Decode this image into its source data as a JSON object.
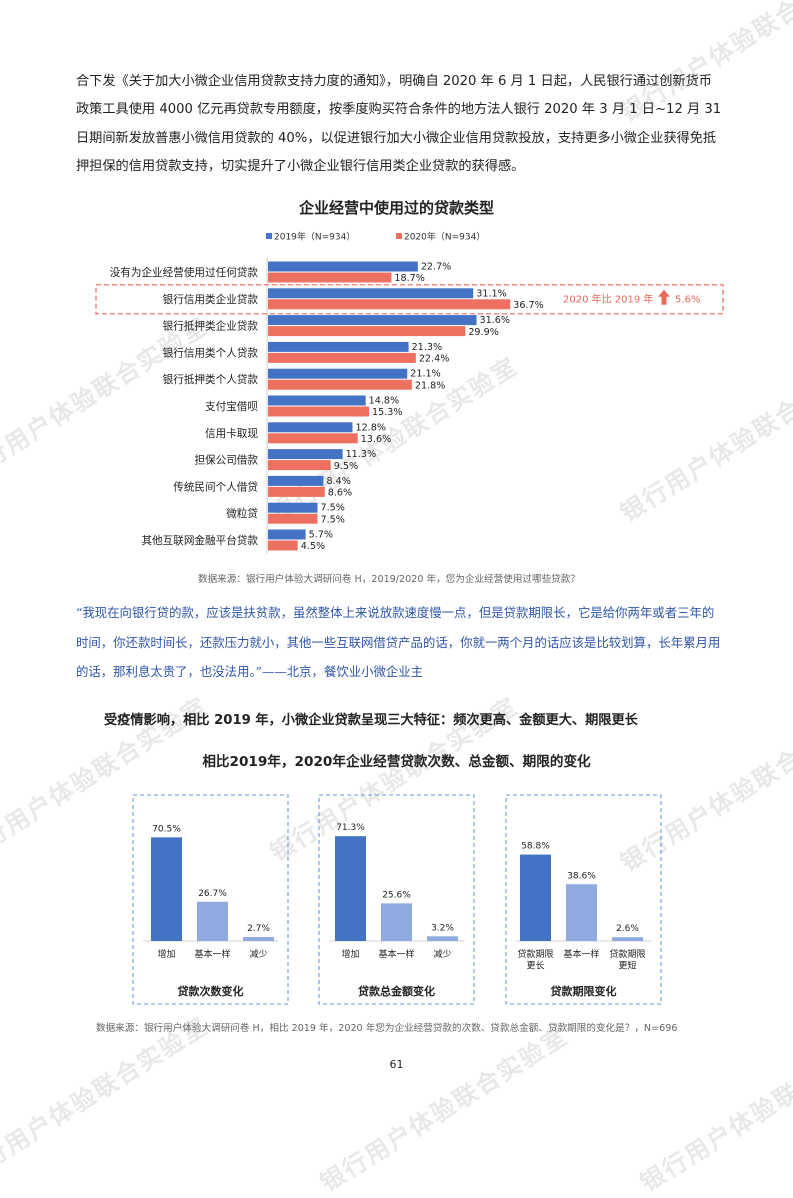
{
  "intro_paragraph": "合下发《关于加大小微企业信用贷款支持力度的通知》，明确自 2020 年 6 月 1 日起，人民银行通过创新货币政策工具使用 4000 亿元再贷款专用额度，按季度购买符合条件的地方法人银行 2020 年 3 月 1 日~12 月 31 日期间新发放普惠小微信用贷款的 40%，以促进银行加大小微企业信用贷款投放，支持更多小微企业获得免抵押担保的信用贷款支持，切实提升了小微企业银行信用类企业贷款的获得感。",
  "watermark_text": "银行用户体验联合实验室",
  "colors": {
    "bar2019": "#4472c4",
    "bar2020": "#ed7060",
    "accent": "#e8685a",
    "light_blue": "#8eaadf",
    "dashed_box": "#6b9ad3",
    "quote": "#2f56a8"
  },
  "chart1_title": "企业经营中使用过的贷款类型",
  "chart1_note": "数据来源：银行用户体验大调研问卷 H，2019/2020 年，您为企业经营使用过哪些贷款？",
  "chart1_callout": "2020 年比 2019 年",
  "chart1_callout_value": "5.6%",
  "quote": "“我现在向银行贷的款，应该是扶贫款，虽然整体上来说放款速度慢一点，但是贷款期限长，它是给你两年或者三年的时间，你还款时间长，还款压力就小，其他一些互联网借贷产品的话，你就一两个月的话应该是比较划算，长年累月用的话，那利息太贵了，也没法用。”——北京，餐饮业小微企业主",
  "subheading": "受疫情影响，相比 2019 年，小微企业贷款呈现三大特征：频次更高、金额更大、期限更长",
  "chart2_title": "相比2019年，2020年企业经营贷款次数、总金额、期限的变化",
  "chart2_note": "数据来源：银行用户体验大调研问卷 H，相比 2019 年，2020 年您为企业经营贷款的次数、贷款总金额、贷款期限的变化是？，N=696",
  "page_number": "61",
  "chart_data": [
    {
      "type": "bar",
      "orientation": "horizontal",
      "title": "企业经营中使用过的贷款类型",
      "categories": [
        "没有为企业经营使用过任何贷款",
        "银行信用类企业贷款",
        "银行抵押类企业贷款",
        "银行信用类个人贷款",
        "银行抵押类个人贷款",
        "支付宝借呗",
        "信用卡取现",
        "担保公司借款",
        "传统民间个人借贷",
        "微粒贷",
        "其他互联网金融平台贷款"
      ],
      "series": [
        {
          "name": "2019年（N=934）",
          "values": [
            22.7,
            31.1,
            31.6,
            21.3,
            21.1,
            14.8,
            12.8,
            11.3,
            8.4,
            7.5,
            5.7
          ],
          "labels": [
            "22.7%",
            "31.1%",
            "31.6%",
            "21.3%",
            "21.1%",
            "14.8%",
            "12.8%",
            "11.3%",
            "8.4%",
            "7.5%",
            "5.7%"
          ]
        },
        {
          "name": "2020年（N=934）",
          "values": [
            18.7,
            36.7,
            29.9,
            22.4,
            21.8,
            15.3,
            13.6,
            9.5,
            8.6,
            7.5,
            4.5
          ],
          "labels": [
            "18.7%",
            "36.7%",
            "29.9%",
            "22.4%",
            "21.8%",
            "15.3%",
            "13.6%",
            "9.5%",
            "8.6%",
            "7.5%",
            "4.5%"
          ]
        }
      ],
      "unit": "%",
      "legend": "top",
      "highlight_category": "银行信用类企业贷款"
    },
    {
      "type": "bar",
      "title": "贷款次数变化",
      "categories": [
        "增加",
        "基本一样",
        "减少"
      ],
      "category_lines": [
        [
          "增加"
        ],
        [
          "基本一样"
        ],
        [
          "减少"
        ]
      ],
      "values": [
        70.5,
        26.7,
        2.7
      ],
      "labels": [
        "70.5%",
        "26.7%",
        "2.7%"
      ],
      "unit": "%"
    },
    {
      "type": "bar",
      "title": "贷款总金额变化",
      "categories": [
        "增加",
        "基本一样",
        "减少"
      ],
      "category_lines": [
        [
          "增加"
        ],
        [
          "基本一样"
        ],
        [
          "减少"
        ]
      ],
      "values": [
        71.3,
        25.6,
        3.2
      ],
      "labels": [
        "71.3%",
        "25.6%",
        "3.2%"
      ],
      "unit": "%"
    },
    {
      "type": "bar",
      "title": "贷款期限变化",
      "categories": [
        "贷款期限更长",
        "基本一样",
        "贷款期限更短"
      ],
      "category_lines": [
        [
          "贷款期限",
          "更长"
        ],
        [
          "基本一样"
        ],
        [
          "贷款期限",
          "更短"
        ]
      ],
      "values": [
        58.8,
        38.6,
        2.6
      ],
      "labels": [
        "58.8%",
        "38.6%",
        "2.6%"
      ],
      "unit": "%"
    }
  ]
}
